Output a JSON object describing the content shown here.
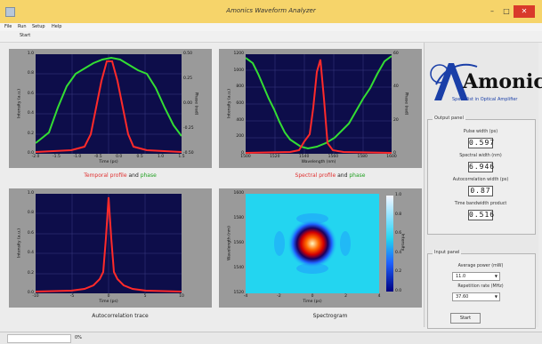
{
  "window": {
    "title": "Amonics Waveform Analyzer",
    "min": "–",
    "max": "□",
    "close": "✕"
  },
  "menu": [
    "File",
    "Run",
    "Setup",
    "Help"
  ],
  "toolbar": {
    "start_label": "Start"
  },
  "colors": {
    "plot_bg": "#0d0d4a",
    "trace_red": "#ff2a2a",
    "trace_green": "#33dd33",
    "panel": "#9a9a9a"
  },
  "panels": {
    "temporal": {
      "caption_red": "Temporal profile",
      "caption_and": "and",
      "caption_green": "phase",
      "xlabel": "Time (ps)",
      "ylabel_left": "Intensity (a.u.)",
      "ylabel_right": "Phase (rad)",
      "xticks": [
        "-2.0",
        "-1.5",
        "-1.0",
        "-0.5",
        "0.0",
        "0.5",
        "1.0",
        "1.5"
      ],
      "yticks_left": [
        "1.0",
        "0.8",
        "0.6",
        "0.4",
        "0.2",
        "0.0"
      ],
      "yticks_right": [
        "0.50",
        "0.25",
        "0.00",
        "-0.25",
        "-0.50"
      ]
    },
    "spectral": {
      "caption_red": "Spectral profile",
      "caption_and": "and",
      "caption_green": "phase",
      "xlabel": "Wavelength (nm)",
      "ylabel_left": "Intensity (a.u.)",
      "ylabel_right": "Phase (rad)",
      "xticks": [
        "1500",
        "1520",
        "1540",
        "1560",
        "1580",
        "1600"
      ],
      "yticks_left": [
        "1200",
        "1000",
        "800",
        "600",
        "400",
        "200",
        "0"
      ],
      "yticks_right": [
        "60",
        "40",
        "20",
        "0"
      ]
    },
    "autocorr": {
      "caption": "Autocorrelation trace",
      "xlabel": "Time (ps)",
      "ylabel_left": "Intensity (a.u.)",
      "xticks": [
        "-10",
        "-5",
        "0",
        "5",
        "10"
      ],
      "yticks_left": [
        "1.0",
        "0.8",
        "0.6",
        "0.4",
        "0.2",
        "0.0"
      ]
    },
    "spectrogram": {
      "caption": "Spectrogram",
      "xlabel": "Time (ps)",
      "ylabel_left": "Wavelength (nm)",
      "xticks": [
        "-4",
        "-2",
        "0",
        "2",
        "4"
      ],
      "yticks_left": [
        "1600",
        "1580",
        "1560",
        "1540",
        "1520"
      ],
      "colorbar_label": "Intensity",
      "colorbar_ticks": [
        "1.0",
        "0.8",
        "0.6",
        "0.4",
        "0.2",
        "0.0"
      ]
    }
  },
  "logo": {
    "name": "Amonics",
    "tagline": "Specialist in Optical Amplifier"
  },
  "output_panel": {
    "title": "Output panel",
    "pulse_width_label": "Pulse width (ps)",
    "pulse_width": "0.597",
    "spectral_width_label": "Spectral width (nm)",
    "spectral_width": "6.946",
    "autocorr_width_label": "Autocorrelation width (ps)",
    "autocorr_width": "0.87",
    "tbp_label": "Time bandwidth product",
    "tbp": "0.516"
  },
  "input_panel": {
    "title": "Input panel",
    "avg_power_label": "Average power (mW)",
    "avg_power": "11.0",
    "rep_rate_label": "Repetition rate (MHz)",
    "rep_rate": "37.60",
    "start_label": "Start"
  },
  "status": {
    "zoom": "0%"
  }
}
